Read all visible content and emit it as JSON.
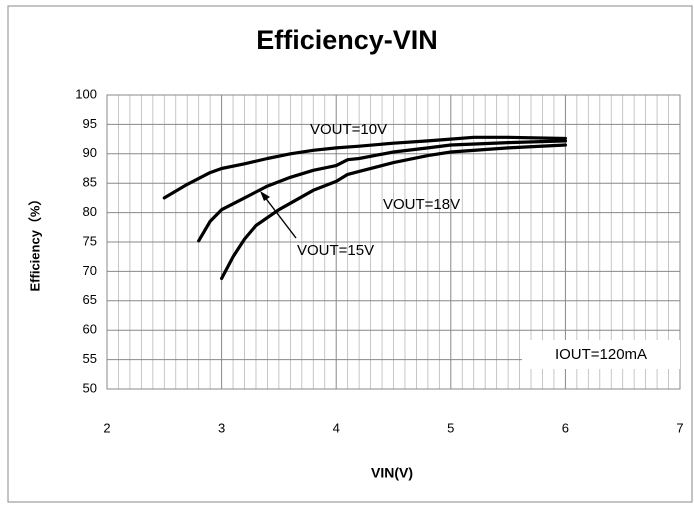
{
  "chart_data": {
    "type": "line",
    "title": "Efficiency-VIN",
    "x_label": "VIN(V)",
    "y_label": "Efficiency（%）",
    "xlim": [
      2,
      7
    ],
    "ylim": [
      50,
      100
    ],
    "xticks": [
      2,
      3,
      4,
      5,
      6,
      7
    ],
    "yticks": [
      50,
      55,
      60,
      65,
      70,
      75,
      80,
      85,
      90,
      95,
      100
    ],
    "grid": true,
    "minor_grid": true,
    "annotations": [
      "VOUT=10V",
      "VOUT=18V",
      "VOUT=15V",
      "IOUT=120mA"
    ],
    "series": [
      {
        "name": "VOUT=10V",
        "color": "#000000",
        "x": [
          2.5,
          2.7,
          2.9,
          3.0,
          3.2,
          3.4,
          3.6,
          3.8,
          4.0,
          4.2,
          4.5,
          4.8,
          5.0,
          5.2,
          5.5,
          6.0
        ],
        "values": [
          82.5,
          84.8,
          86.8,
          87.5,
          88.3,
          89.2,
          90.0,
          90.6,
          91.0,
          91.3,
          91.8,
          92.2,
          92.5,
          92.8,
          92.8,
          92.6
        ]
      },
      {
        "name": "VOUT=15V",
        "color": "#000000",
        "x": [
          2.8,
          2.9,
          3.0,
          3.2,
          3.4,
          3.6,
          3.8,
          4.0,
          4.1,
          4.2,
          4.5,
          4.8,
          5.0,
          5.5,
          6.0
        ],
        "values": [
          75.2,
          78.5,
          80.5,
          82.5,
          84.5,
          86.0,
          87.2,
          88.0,
          89.0,
          89.2,
          90.3,
          91.0,
          91.5,
          91.9,
          92.2
        ]
      },
      {
        "name": "VOUT=18V",
        "color": "#000000",
        "x": [
          3.0,
          3.1,
          3.2,
          3.3,
          3.5,
          3.8,
          4.0,
          4.1,
          4.2,
          4.5,
          4.8,
          5.0,
          5.5,
          6.0
        ],
        "values": [
          68.8,
          72.5,
          75.5,
          77.8,
          80.5,
          83.8,
          85.3,
          86.5,
          87.0,
          88.5,
          89.7,
          90.3,
          91.0,
          91.5
        ]
      }
    ]
  }
}
